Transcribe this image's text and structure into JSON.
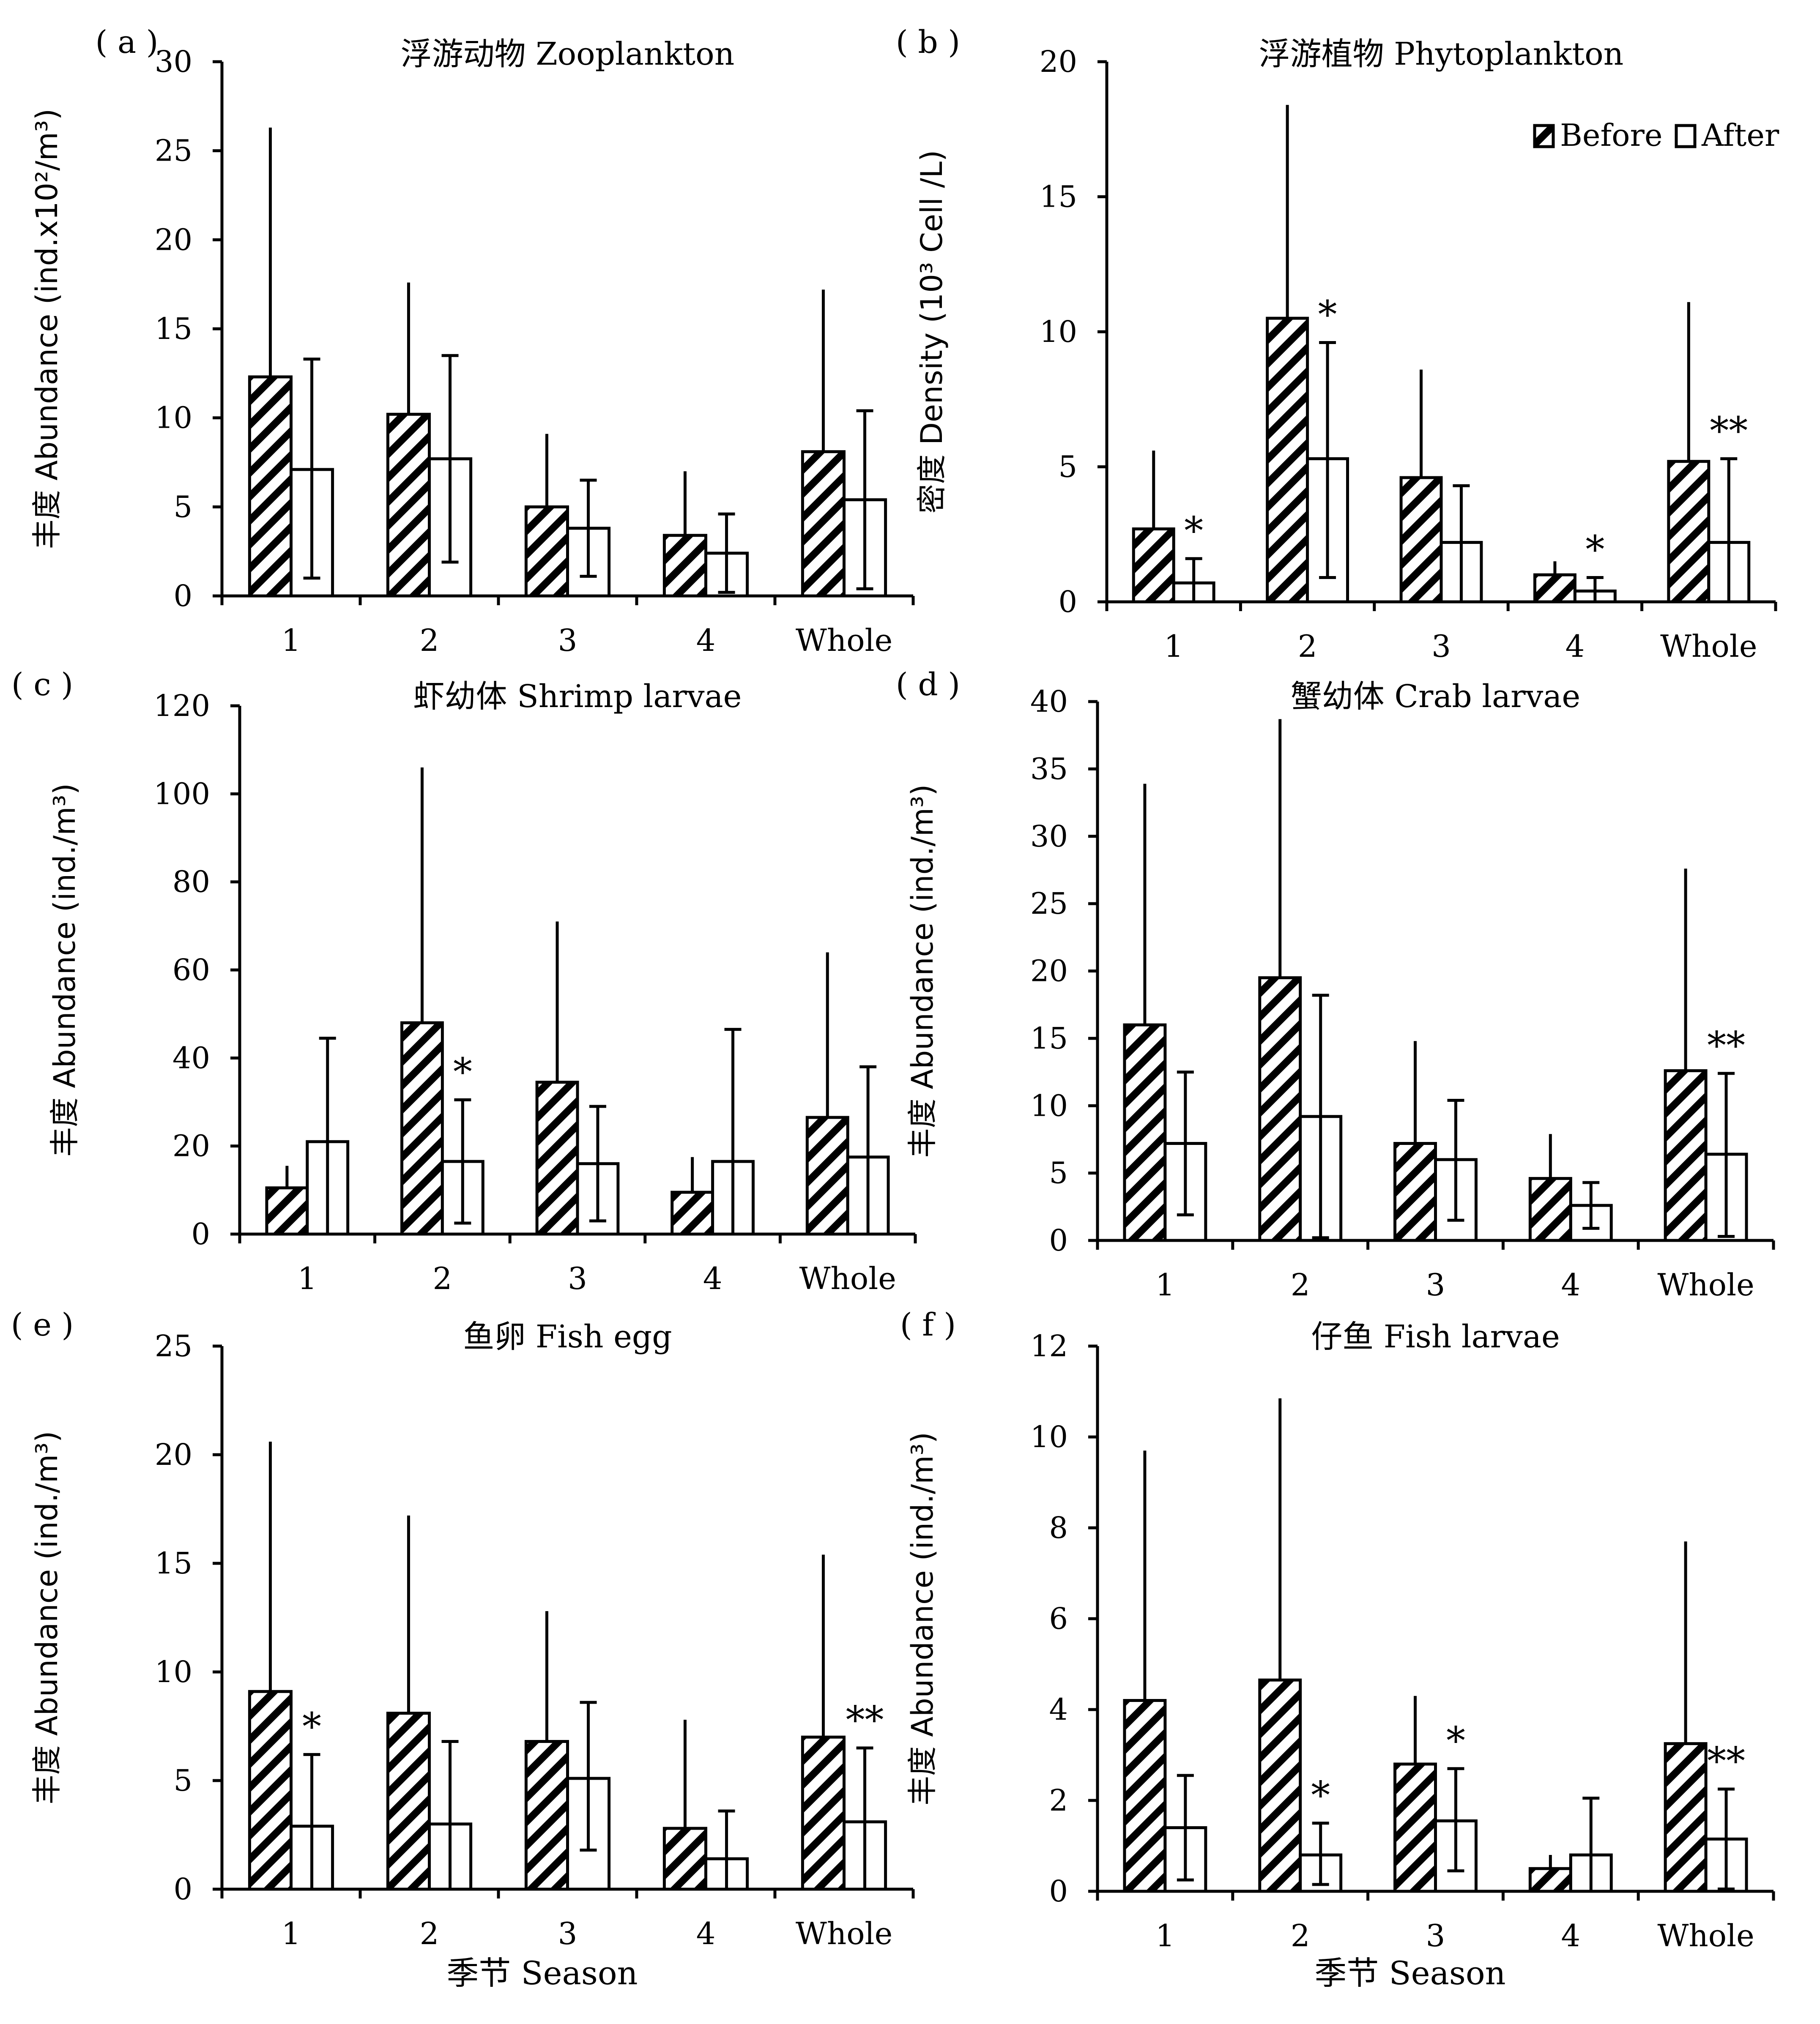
{
  "shared": {
    "season_label": "季节 Season",
    "legend": {
      "before": "Before",
      "after": "After"
    }
  },
  "chart_data": [
    {
      "type": "bar",
      "panel": "( a )",
      "title": "浮游动物  Zooplankton",
      "ylabel": "丰度 Abundance (ind.x10²/m³)",
      "xlabel": "",
      "categories": [
        "1",
        "2",
        "3",
        "4",
        "Whole"
      ],
      "ylim": [
        0,
        30
      ],
      "yticks": [
        "0",
        "5",
        "10",
        "15",
        "20",
        "25",
        "30"
      ],
      "series": [
        {
          "name": "Before",
          "pattern": "hatched",
          "values": [
            12.3,
            10.2,
            5.0,
            3.4,
            8.1
          ],
          "error_upper": [
            26.3,
            17.6,
            9.1,
            7.0,
            17.2
          ]
        },
        {
          "name": "After",
          "pattern": "open",
          "values": [
            7.1,
            7.7,
            3.8,
            2.4,
            5.4
          ],
          "error_upper": [
            13.3,
            13.5,
            6.5,
            4.6,
            10.4
          ],
          "error_lower": [
            1.0,
            1.9,
            1.1,
            0.2,
            0.4
          ]
        }
      ],
      "annotations": [],
      "show_legend": false,
      "show_xlabel": false
    },
    {
      "type": "bar",
      "panel": "( b )",
      "title": "浮游植物  Phytoplankton",
      "ylabel": "密度 Density (10³ Cell /L)",
      "xlabel": "",
      "categories": [
        "1",
        "2",
        "3",
        "4",
        "Whole"
      ],
      "ylim": [
        0,
        20
      ],
      "yticks": [
        "0",
        "5",
        "10",
        "15",
        "20"
      ],
      "series": [
        {
          "name": "Before",
          "pattern": "hatched",
          "values": [
            2.7,
            10.5,
            4.6,
            1.0,
            5.2
          ],
          "error_upper": [
            5.6,
            18.4,
            8.6,
            1.5,
            11.1
          ]
        },
        {
          "name": "After",
          "pattern": "open",
          "values": [
            0.7,
            5.3,
            2.2,
            0.4,
            2.2
          ],
          "error_upper": [
            1.6,
            9.6,
            4.3,
            0.9,
            5.3
          ],
          "error_lower": [
            0.0,
            0.9,
            0.0,
            0.0,
            0.0
          ]
        }
      ],
      "annotations": [
        {
          "category": "1",
          "text": "*"
        },
        {
          "category": "2",
          "text": "*"
        },
        {
          "category": "4",
          "text": "*"
        },
        {
          "category": "Whole",
          "text": "**"
        }
      ],
      "show_legend": true,
      "show_xlabel": false
    },
    {
      "type": "bar",
      "panel": "( c )",
      "title": "虾幼体  Shrimp larvae",
      "ylabel": "丰度 Abundance (ind./m³)",
      "xlabel": "",
      "categories": [
        "1",
        "2",
        "3",
        "4",
        "Whole"
      ],
      "ylim": [
        0,
        120
      ],
      "yticks": [
        "0",
        "20",
        "40",
        "60",
        "80",
        "100",
        "120"
      ],
      "series": [
        {
          "name": "Before",
          "pattern": "hatched",
          "values": [
            10.5,
            48.0,
            34.5,
            9.5,
            26.5
          ],
          "error_upper": [
            15.5,
            106.0,
            71.0,
            17.5,
            64.0
          ]
        },
        {
          "name": "After",
          "pattern": "open",
          "values": [
            21.0,
            16.5,
            16.0,
            16.5,
            17.5
          ],
          "error_upper": [
            44.5,
            30.5,
            29.0,
            46.5,
            38.0
          ],
          "error_lower": [
            0.0,
            2.5,
            3.0,
            0.0,
            0.0
          ]
        }
      ],
      "annotations": [
        {
          "category": "2",
          "text": "*"
        }
      ],
      "show_legend": false,
      "show_xlabel": false
    },
    {
      "type": "bar",
      "panel": "( d )",
      "title": "蟹幼体  Crab larvae",
      "ylabel": "丰度 Abundance (ind./m³)",
      "xlabel": "",
      "categories": [
        "1",
        "2",
        "3",
        "4",
        "Whole"
      ],
      "ylim": [
        0,
        40
      ],
      "yticks": [
        "0",
        "5",
        "10",
        "15",
        "20",
        "25",
        "30",
        "35",
        "40"
      ],
      "series": [
        {
          "name": "Before",
          "pattern": "hatched",
          "values": [
            16.0,
            19.5,
            7.2,
            4.6,
            12.6
          ],
          "error_upper": [
            33.9,
            38.7,
            14.8,
            7.9,
            27.6
          ]
        },
        {
          "name": "After",
          "pattern": "open",
          "values": [
            7.2,
            9.2,
            6.0,
            2.6,
            6.4
          ],
          "error_upper": [
            12.5,
            18.2,
            10.4,
            4.3,
            12.4
          ],
          "error_lower": [
            1.9,
            0.2,
            1.5,
            0.9,
            0.3
          ]
        }
      ],
      "annotations": [
        {
          "category": "Whole",
          "text": "**"
        }
      ],
      "show_legend": false,
      "show_xlabel": false
    },
    {
      "type": "bar",
      "panel": "( e )",
      "title": "鱼卵  Fish egg",
      "ylabel": "丰度 Abundance (ind./m³)",
      "xlabel": "季节 Season",
      "categories": [
        "1",
        "2",
        "3",
        "4",
        "Whole"
      ],
      "ylim": [
        0,
        25
      ],
      "yticks": [
        "0",
        "5",
        "10",
        "15",
        "20",
        "25"
      ],
      "series": [
        {
          "name": "Before",
          "pattern": "hatched",
          "values": [
            9.1,
            8.1,
            6.8,
            2.8,
            7.0
          ],
          "error_upper": [
            20.6,
            17.2,
            12.8,
            7.8,
            15.4
          ]
        },
        {
          "name": "After",
          "pattern": "open",
          "values": [
            2.9,
            3.0,
            5.1,
            1.4,
            3.1
          ],
          "error_upper": [
            6.2,
            6.8,
            8.6,
            3.6,
            6.5
          ],
          "error_lower": [
            0.0,
            0.0,
            1.8,
            0.0,
            0.0
          ]
        }
      ],
      "annotations": [
        {
          "category": "1",
          "text": "*"
        },
        {
          "category": "Whole",
          "text": "**"
        }
      ],
      "show_legend": false,
      "show_xlabel": true
    },
    {
      "type": "bar",
      "panel": "( f )",
      "title": "仔鱼  Fish larvae",
      "ylabel": "丰度 Abundance (ind./m³)",
      "xlabel": "季节 Season",
      "categories": [
        "1",
        "2",
        "3",
        "4",
        "Whole"
      ],
      "ylim": [
        0,
        12
      ],
      "yticks": [
        "0",
        "2",
        "4",
        "6",
        "8",
        "10",
        "12"
      ],
      "series": [
        {
          "name": "Before",
          "pattern": "hatched",
          "values": [
            4.2,
            4.65,
            2.8,
            0.5,
            3.25
          ],
          "error_upper": [
            9.7,
            10.85,
            4.3,
            0.8,
            7.7
          ]
        },
        {
          "name": "After",
          "pattern": "open",
          "values": [
            1.4,
            0.8,
            1.55,
            0.8,
            1.15
          ],
          "error_upper": [
            2.55,
            1.5,
            2.7,
            2.05,
            2.25
          ],
          "error_lower": [
            0.25,
            0.15,
            0.45,
            0.0,
            0.05
          ]
        }
      ],
      "annotations": [
        {
          "category": "2",
          "text": "*"
        },
        {
          "category": "3",
          "text": "*"
        },
        {
          "category": "Whole",
          "text": "**"
        }
      ],
      "show_legend": false,
      "show_xlabel": true
    }
  ]
}
